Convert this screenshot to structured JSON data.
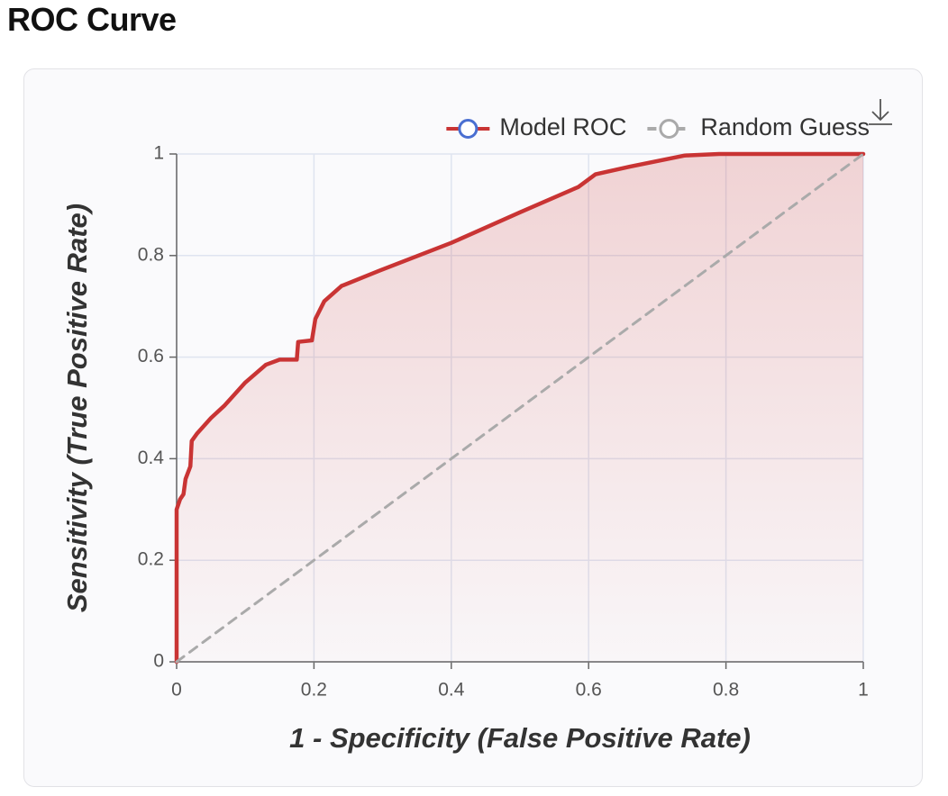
{
  "chart_data": {
    "type": "line",
    "title": "ROC Curve",
    "x_label": "1 - Specificity (False Positive Rate)",
    "y_label": "Sensitivity (True Positive Rate)",
    "xlim": [
      0,
      1
    ],
    "ylim": [
      0,
      1
    ],
    "xticks": [
      0,
      0.2,
      0.4,
      0.6,
      0.8,
      1
    ],
    "yticks": [
      0,
      0.2,
      0.4,
      0.6,
      0.8,
      1
    ],
    "grid": true,
    "legend_position": "top-right",
    "series": [
      {
        "name": "Model ROC",
        "color": "#c93434",
        "fill": true,
        "x": [
          0,
          0,
          0.005,
          0.01,
          0.013,
          0.02,
          0.022,
          0.03,
          0.05,
          0.07,
          0.1,
          0.13,
          0.15,
          0.175,
          0.177,
          0.197,
          0.202,
          0.215,
          0.24,
          0.295,
          0.4,
          0.5,
          0.585,
          0.61,
          0.66,
          0.74,
          0.79,
          1
        ],
        "values": [
          0,
          0.3,
          0.32,
          0.33,
          0.36,
          0.385,
          0.435,
          0.45,
          0.48,
          0.505,
          0.55,
          0.585,
          0.595,
          0.595,
          0.63,
          0.633,
          0.675,
          0.71,
          0.74,
          0.77,
          0.825,
          0.885,
          0.935,
          0.96,
          0.975,
          0.997,
          1,
          1
        ]
      },
      {
        "name": "Random Guess",
        "color": "#aaaaaa",
        "dashed": true,
        "x": [
          0,
          1
        ],
        "values": [
          0,
          1
        ]
      }
    ]
  }
}
